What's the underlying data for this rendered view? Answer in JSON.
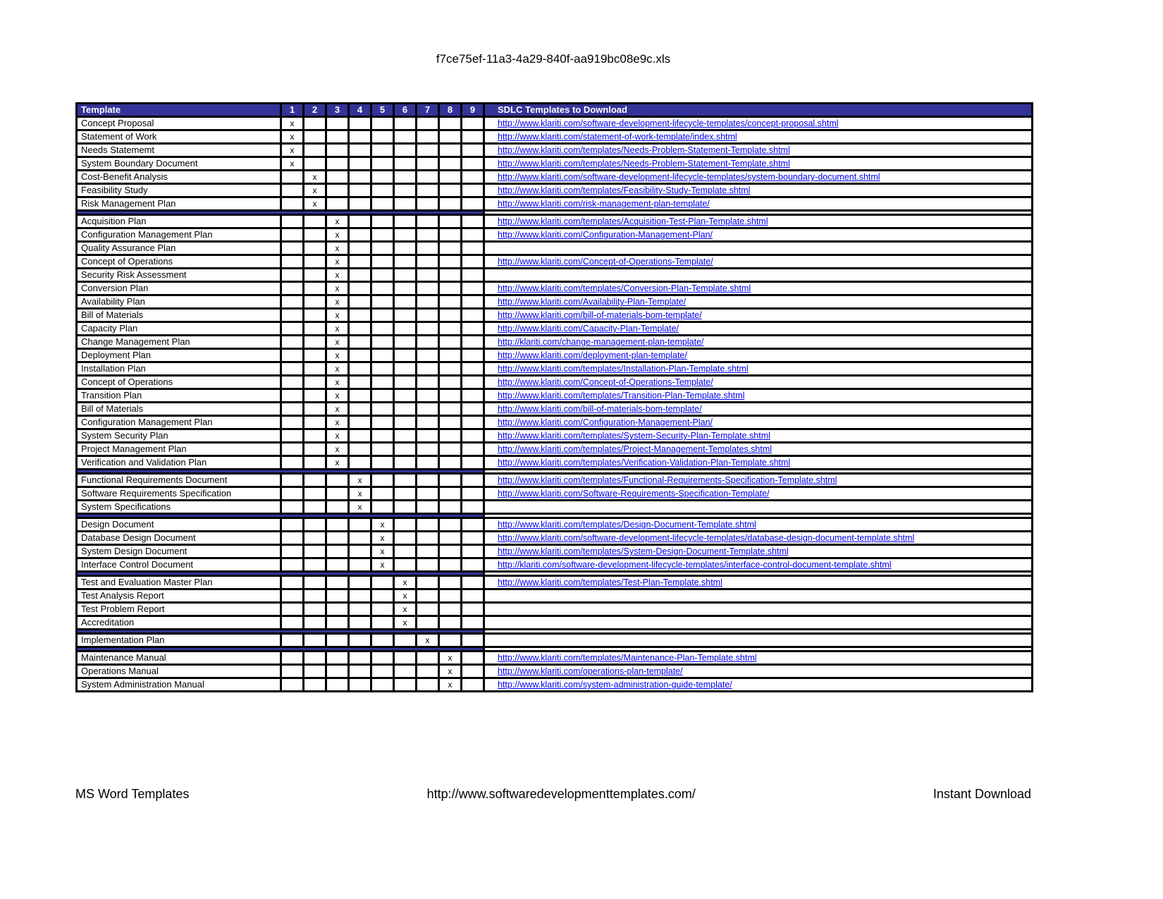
{
  "page": {
    "title": "f7ce75ef-11a3-4a29-840f-aa919bc08e9c.xls"
  },
  "colors": {
    "header_bg": "#333399",
    "link": "#0000EE",
    "border": "#000000"
  },
  "table": {
    "header": {
      "template": "Template",
      "phases": [
        "1",
        "2",
        "3",
        "4",
        "5",
        "6",
        "7",
        "8",
        "9"
      ],
      "download": "SDLC Templates to Download"
    },
    "mark": "x",
    "sections": [
      {
        "rows": [
          {
            "name": "Concept Proposal",
            "phase": 1,
            "url": "http://www.klariti.com/software-development-lifecycle-templates/concept-proposal.shtml"
          },
          {
            "name": "Statement of Work",
            "phase": 1,
            "url": "http://www.klariti.com/statement-of-work-template/index.shtml"
          },
          {
            "name": "Needs Statememt",
            "phase": 1,
            "url": "http://www.klariti.com/templates/Needs-Problem-Statement-Template.shtml"
          },
          {
            "name": "System Boundary Document",
            "phase": 1,
            "url": "http://www.klariti.com/templates/Needs-Problem-Statement-Template.shtml"
          },
          {
            "name": "Cost-Benefit Analysis",
            "phase": 2,
            "url": "http://www.klariti.com/software-development-lifecycle-templates/system-boundary-document.shtml"
          },
          {
            "name": "Feasibility Study",
            "phase": 2,
            "url": "http://www.klariti.com/templates/Feasibility-Study-Template.shtml"
          },
          {
            "name": "Risk Management Plan",
            "phase": 2,
            "url": "http://www.klariti.com/risk-management-plan-template/"
          }
        ]
      },
      {
        "rows": [
          {
            "name": "Acquisition Plan",
            "phase": 3,
            "url": "http://www.klariti.com/templates/Acquisition-Test-Plan-Template.shtml"
          },
          {
            "name": "Configuration Management Plan",
            "phase": 3,
            "url": "http://www.klariti.com/Configuration-Management-Plan/"
          },
          {
            "name": "Quality Assurance Plan",
            "phase": 3,
            "url": ""
          },
          {
            "name": "Concept of Operations",
            "phase": 3,
            "url": "http://www.klariti.com/Concept-of-Operations-Template/"
          },
          {
            "name": "Security Risk Assessment",
            "phase": 3,
            "url": ""
          },
          {
            "name": "Conversion Plan",
            "phase": 3,
            "url": "http://www.klariti.com/templates/Conversion-Plan-Template.shtml"
          },
          {
            "name": "Availability Plan",
            "phase": 3,
            "url": "http://www.klariti.com/Availability-Plan-Template/"
          },
          {
            "name": "Bill of Materials",
            "phase": 3,
            "url": "http://www.klariti.com/bill-of-materials-bom-template/"
          },
          {
            "name": "Capacity Plan",
            "phase": 3,
            "url": "http://www.klariti.com/Capacity-Plan-Template/"
          },
          {
            "name": "Change Management Plan",
            "phase": 3,
            "url": "http://klariti.com/change-management-plan-template/"
          },
          {
            "name": "Deployment Plan",
            "phase": 3,
            "url": "http://www.klariti.com/deployment-plan-template/"
          },
          {
            "name": "Installation Plan",
            "phase": 3,
            "url": "http://www.klariti.com/templates/Installation-Plan-Template.shtml"
          },
          {
            "name": "Concept of Operations",
            "phase": 3,
            "url": "http://www.klariti.com/Concept-of-Operations-Template/"
          },
          {
            "name": "Transition Plan",
            "phase": 3,
            "url": "http://www.klariti.com/templates/Transition-Plan-Template.shtml"
          },
          {
            "name": "Bill of Materials",
            "phase": 3,
            "url": "http://www.klariti.com/bill-of-materials-bom-template/"
          },
          {
            "name": "Configuration Management Plan",
            "phase": 3,
            "url": "http://www.klariti.com/Configuration-Management-Plan/"
          },
          {
            "name": "System Security Plan",
            "phase": 3,
            "url": "http://www.klariti.com/templates/System-Security-Plan-Template.shtml"
          },
          {
            "name": "Project Management Plan",
            "phase": 3,
            "url": "http://www.klariti.com/templates/Project-Management-Templates.shtml"
          },
          {
            "name": "Verification and Validation Plan",
            "phase": 3,
            "url": "http://www.klariti.com/templates/Verification-Validation-Plan-Template.shtml"
          }
        ]
      },
      {
        "rows": [
          {
            "name": "Functional Requirements Document",
            "phase": 4,
            "url": "http://www.klariti.com/templates/Functional-Requirements-Specification-Template.shtml"
          },
          {
            "name": "Software Requirements Specification",
            "phase": 4,
            "url": "http://www.klariti.com/Software-Requirements-Specification-Template/"
          },
          {
            "name": "System Specifications",
            "phase": 4,
            "url": ""
          }
        ]
      },
      {
        "rows": [
          {
            "name": "Design Document",
            "phase": 5,
            "url": "http://www.klariti.com/templates/Design-Document-Template.shtml"
          },
          {
            "name": "Database Design Document",
            "phase": 5,
            "url": "http://www.klariti.com/software-development-lifecycle-templates/database-design-document-template.shtml"
          },
          {
            "name": "System Design Document",
            "phase": 5,
            "url": "http://www.klariti.com/templates/System-Design-Document-Template.shtml"
          },
          {
            "name": "Interface Control Document",
            "phase": 5,
            "url": "http://klariti.com/software-development-lifecycle-templates/interface-control-document-template.shtml"
          }
        ]
      },
      {
        "rows": [
          {
            "name": "Test and Evaluation Master Plan",
            "phase": 6,
            "url": "http://www.klariti.com/templates/Test-Plan-Template.shtml"
          },
          {
            "name": "Test Analysis Report",
            "phase": 6,
            "url": ""
          },
          {
            "name": "Test Problem Report",
            "phase": 6,
            "url": ""
          },
          {
            "name": "Accreditation",
            "phase": 6,
            "url": ""
          }
        ]
      },
      {
        "rows": [
          {
            "name": "Implementation Plan",
            "phase": 7,
            "url": ""
          }
        ]
      },
      {
        "rows": [
          {
            "name": "Maintenance Manual",
            "phase": 8,
            "url": "http://www.klariti.com/templates/Maintenance-Plan-Template.shtml"
          },
          {
            "name": "Operations Manual",
            "phase": 8,
            "url": "http://www.klariti.com/operations-plan-template/"
          },
          {
            "name": "System Administration Manual",
            "phase": 8,
            "url": "http://www.klariti.com/system-administration-guide-template/"
          }
        ]
      }
    ]
  },
  "footer": {
    "left": "MS Word Templates",
    "center": "http://www.softwaredevelopmenttemplates.com/",
    "right": "Instant Download"
  }
}
